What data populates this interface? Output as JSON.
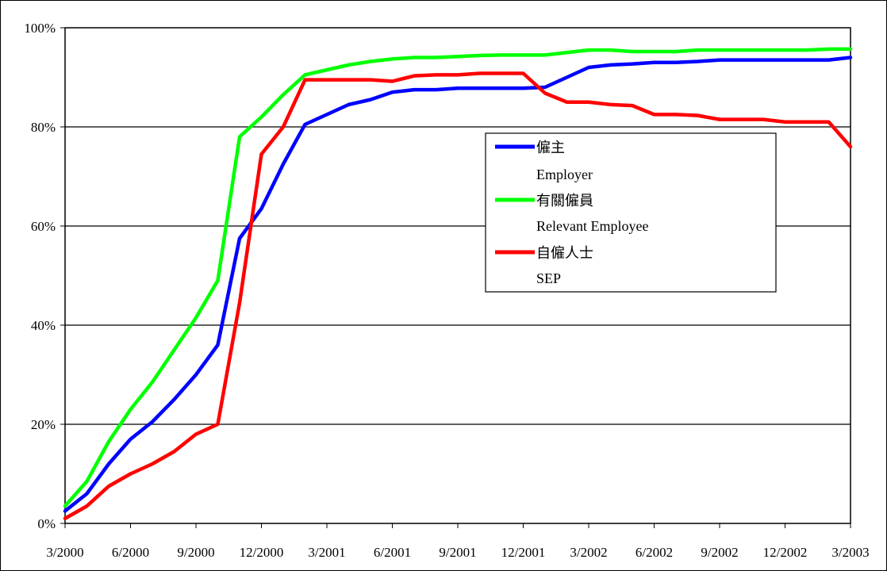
{
  "chart_data": {
    "type": "line",
    "title": "",
    "xlabel": "",
    "ylabel": "",
    "ylim": [
      0,
      100
    ],
    "y_ticks": [
      "0%",
      "20%",
      "40%",
      "60%",
      "80%",
      "100%"
    ],
    "x_tick_labels": [
      "3/2000",
      "6/2000",
      "9/2000",
      "12/2000",
      "3/2001",
      "6/2001",
      "9/2001",
      "12/2001",
      "3/2002",
      "6/2002",
      "9/2002",
      "12/2002",
      "3/2003"
    ],
    "x_months": [
      "3/2000",
      "4/2000",
      "5/2000",
      "6/2000",
      "7/2000",
      "8/2000",
      "9/2000",
      "10/2000",
      "11/2000",
      "12/2000",
      "1/2001",
      "2/2001",
      "3/2001",
      "4/2001",
      "5/2001",
      "6/2001",
      "7/2001",
      "8/2001",
      "9/2001",
      "10/2001",
      "11/2001",
      "12/2001",
      "1/2002",
      "2/2002",
      "3/2002",
      "4/2002",
      "5/2002",
      "6/2002",
      "7/2002",
      "8/2002",
      "9/2002",
      "10/2002",
      "11/2002",
      "12/2002",
      "1/2003",
      "2/2003",
      "3/2003"
    ],
    "grid": true,
    "legend_position": "right",
    "series": [
      {
        "name": "僱主",
        "name_en": "Employer",
        "color": "#0000ff",
        "values": [
          2.5,
          6,
          12,
          17,
          20.5,
          25,
          30,
          36,
          57.5,
          63.5,
          72.5,
          80.5,
          82.5,
          84.5,
          85.5,
          87,
          87.5,
          87.5,
          87.8,
          87.8,
          87.8,
          87.8,
          88,
          90,
          92,
          92.5,
          92.7,
          93,
          93,
          93.2,
          93.5,
          93.5,
          93.5,
          93.5,
          93.5,
          93.5,
          94
        ]
      },
      {
        "name": "有關僱員",
        "name_en": "Relevant Employee",
        "color": "#00ff00",
        "values": [
          3.5,
          8.5,
          16.5,
          23,
          28.5,
          35,
          41.5,
          49,
          78,
          82,
          86.5,
          90.5,
          91.5,
          92.5,
          93.2,
          93.7,
          94,
          94,
          94.2,
          94.4,
          94.5,
          94.5,
          94.5,
          95,
          95.5,
          95.5,
          95.2,
          95.2,
          95.2,
          95.5,
          95.5,
          95.5,
          95.5,
          95.5,
          95.5,
          95.7,
          95.7
        ]
      },
      {
        "name": "自僱人士",
        "name_en": "SEP",
        "color": "#ff0000",
        "values": [
          1,
          3.5,
          7.5,
          10,
          12,
          14.5,
          18,
          20,
          44.5,
          74.5,
          80,
          89.5,
          89.5,
          89.5,
          89.5,
          89.2,
          90.3,
          90.5,
          90.5,
          90.8,
          90.8,
          90.8,
          86.8,
          85,
          85,
          84.5,
          84.3,
          82.5,
          82.5,
          82.3,
          81.5,
          81.5,
          81.5,
          81,
          81,
          81,
          76
        ]
      }
    ]
  }
}
